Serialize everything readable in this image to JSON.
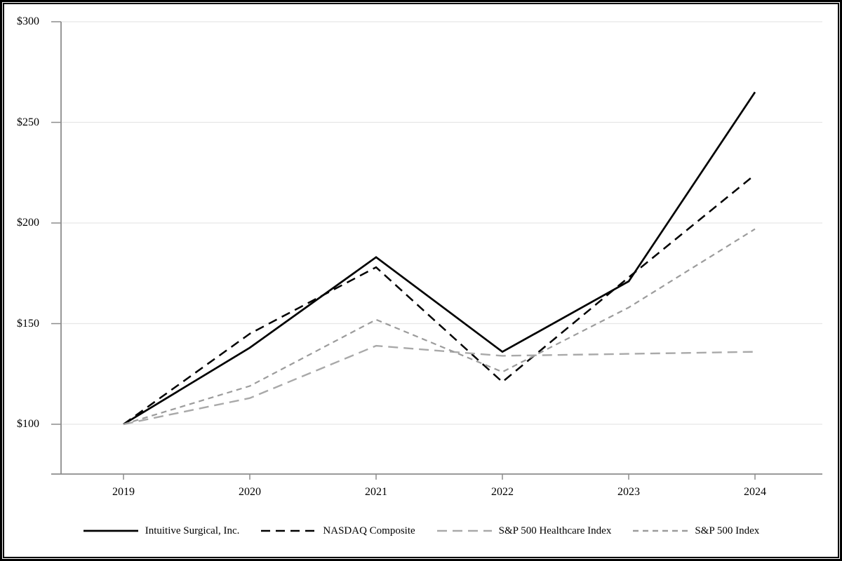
{
  "chart_data": {
    "type": "line",
    "title": "",
    "xlabel": "",
    "ylabel": "",
    "categories": [
      "2019",
      "2020",
      "2021",
      "2022",
      "2023",
      "2024"
    ],
    "series": [
      {
        "name": "Intuitive Surgical, Inc.",
        "values": [
          100,
          138,
          183,
          136,
          171,
          265
        ],
        "color": "#000000",
        "dash": "",
        "width": 2.7
      },
      {
        "name": "NASDAQ Composite",
        "values": [
          100,
          145,
          178,
          121,
          173,
          224
        ],
        "color": "#000000",
        "dash": "13,8",
        "width": 2.5
      },
      {
        "name": "S&P 500 Healthcare Index",
        "values": [
          100,
          113,
          139,
          134,
          135,
          136
        ],
        "color": "#a9a9a9",
        "dash": "14,8",
        "width": 2.4
      },
      {
        "name": "S&P 500 Index",
        "values": [
          100,
          119,
          152,
          126,
          158,
          197
        ],
        "color": "#9c9c9c",
        "dash": "8,6",
        "width": 2.2
      }
    ],
    "yticks": [
      {
        "label": "$300",
        "value": 300
      },
      {
        "label": "$250",
        "value": 250
      },
      {
        "label": "$200",
        "value": 200
      },
      {
        "label": "$150",
        "value": 150
      },
      {
        "label": "$100",
        "value": 100
      }
    ],
    "ylim": [
      75,
      300
    ],
    "grid": true,
    "legend_position": "bottom",
    "colors": {
      "axis": "#8c8c8c",
      "gridline": "#e6e6e6",
      "tick": "#8c8c8c",
      "text": "#000000",
      "frame": "#000000"
    }
  }
}
